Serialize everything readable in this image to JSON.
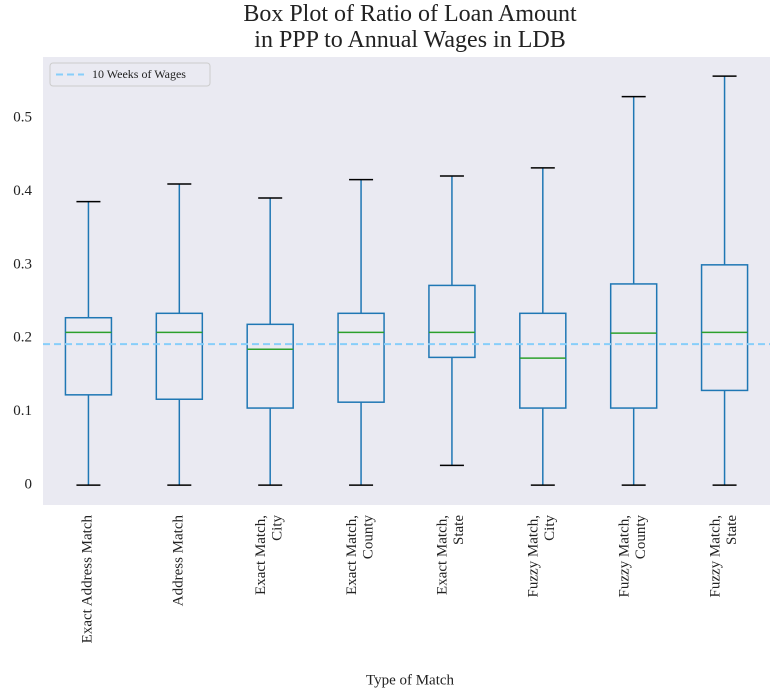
{
  "chart_data": {
    "type": "box",
    "title": "Box Plot of Ratio of Loan Amount\nin PPP to Annual Wages in LDB",
    "x_label": "Type of Match",
    "categories": [
      "Exact Address Match",
      "Address Match",
      "Exact Match,\nCity",
      "Exact Match,\nCounty",
      "Exact Match,\nState",
      "Fuzzy Match,\nCity",
      "Fuzzy Match,\nCounty",
      "Fuzzy Match,\nState"
    ],
    "boxes": [
      {
        "whislo": 0,
        "q1": 0.123,
        "med": 0.208,
        "q3": 0.228,
        "whishi": 0.386
      },
      {
        "whislo": 0,
        "q1": 0.117,
        "med": 0.208,
        "q3": 0.234,
        "whishi": 0.41
      },
      {
        "whislo": 0,
        "q1": 0.105,
        "med": 0.185,
        "q3": 0.219,
        "whishi": 0.391
      },
      {
        "whislo": 0,
        "q1": 0.113,
        "med": 0.208,
        "q3": 0.234,
        "whishi": 0.416
      },
      {
        "whislo": 0.027,
        "q1": 0.174,
        "med": 0.208,
        "q3": 0.272,
        "whishi": 0.421
      },
      {
        "whislo": 0,
        "q1": 0.105,
        "med": 0.173,
        "q3": 0.234,
        "whishi": 0.432
      },
      {
        "whislo": 0,
        "q1": 0.105,
        "med": 0.207,
        "q3": 0.274,
        "whishi": 0.529
      },
      {
        "whislo": 0,
        "q1": 0.129,
        "med": 0.208,
        "q3": 0.3,
        "whishi": 0.557
      }
    ],
    "box_color": "#1f77b4",
    "median_color": "#2ca02c",
    "cap_color": "#000000",
    "reference_line": {
      "label": "10 Weeks of Wages",
      "value": 0.192,
      "color": "#87cefa"
    },
    "legend": "upper left",
    "ylim": [
      -0.027,
      0.583
    ],
    "yticks": [
      0.0,
      0.1,
      0.2,
      0.3,
      0.4,
      0.5
    ],
    "grid": false
  }
}
